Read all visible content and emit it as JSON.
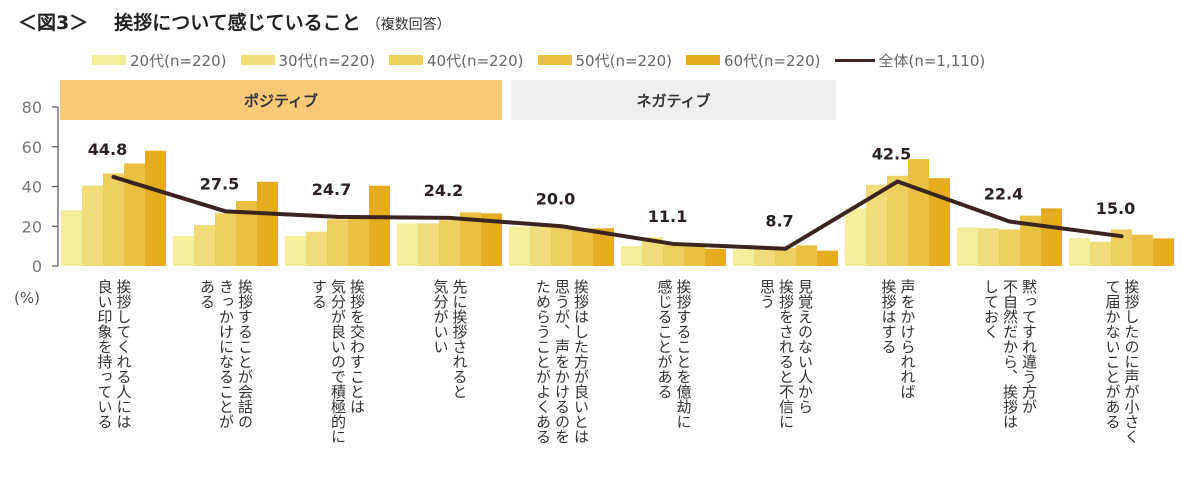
{
  "title": {
    "figure": "＜図3＞",
    "main": "挨拶について感じていること",
    "note": "（複数回答）"
  },
  "bands": {
    "positive": "ポジティブ",
    "negative": "ネガティブ"
  },
  "y_unit_label": "(%)",
  "colors": {
    "s20": "#f3ee9a",
    "s30": "#f0dc78",
    "s40": "#edcf5e",
    "s50": "#e9c042",
    "s60": "#e5ac22",
    "line": "#3b2420",
    "positive_band": "#f9c97a",
    "negative_band": "#efefef"
  },
  "chart_data": {
    "type": "bar",
    "title": "挨拶について感じていること（複数回答）",
    "xlabel": "",
    "ylabel": "(%)",
    "ylim": [
      0,
      80
    ],
    "yticks": [
      "0",
      "20",
      "40",
      "60",
      "80"
    ],
    "legend_position": "top",
    "categories": [
      "挨拶してくれる人には\n良い印象を持っている",
      "挨拶することが会話の\nきっかけになることが\nある",
      "挨拶を交わすことは\n気分が良いので積極的に\nする",
      "先に挨拶されると\n気分がいい",
      "挨拶はした方が良いとは\n思うが、声をかけるのを\nためらうことがよくある",
      "挨拶することを億劫に\n感じることがある",
      "見覚えのない人から\n挨拶をされると不信に\n思う",
      "声をかけられれば\n挨拶はする",
      "黙ってすれ違う方が\n不自然だから、挨拶は\nしておく",
      "挨拶したのに声が小さく\nて届かないことがある"
    ],
    "series": [
      {
        "name": "20代(n=220)",
        "type": "bar",
        "values": [
          28,
          15,
          15,
          21.4,
          19.8,
          10,
          8.4,
          29,
          19.4,
          14
        ]
      },
      {
        "name": "30代(n=220)",
        "type": "bar",
        "values": [
          40.4,
          20.6,
          17.3,
          21.4,
          19.8,
          14.4,
          8.4,
          40.9,
          19,
          12.2
        ]
      },
      {
        "name": "40代(n=220)",
        "type": "bar",
        "values": [
          46.6,
          26.5,
          23.5,
          23,
          19.5,
          11.7,
          9,
          45.4,
          18.4,
          18.4
        ]
      },
      {
        "name": "50代(n=220)",
        "type": "bar",
        "values": [
          51.6,
          32.7,
          24,
          27,
          19,
          11,
          10.4,
          53.8,
          25.3,
          15.7
        ]
      },
      {
        "name": "60代(n=220)",
        "type": "bar",
        "values": [
          58,
          42.4,
          40.4,
          26.5,
          19,
          8.7,
          7.7,
          44.2,
          29,
          13.9
        ]
      },
      {
        "name": "全体(n=1,110)",
        "type": "line",
        "values": [
          44.8,
          27.5,
          24.7,
          24.2,
          20.0,
          11.1,
          8.7,
          42.5,
          22.4,
          15.0
        ]
      }
    ],
    "data_labels": [
      "44.8",
      "27.5",
      "24.7",
      "24.2",
      "20.0",
      "11.1",
      "8.7",
      "42.5",
      "22.4",
      "15.0"
    ],
    "groups": [
      {
        "label": "ポジティブ",
        "categories": [
          0,
          1,
          2,
          3
        ]
      },
      {
        "label": "ネガティブ",
        "categories": [
          4,
          5,
          6
        ]
      }
    ]
  }
}
